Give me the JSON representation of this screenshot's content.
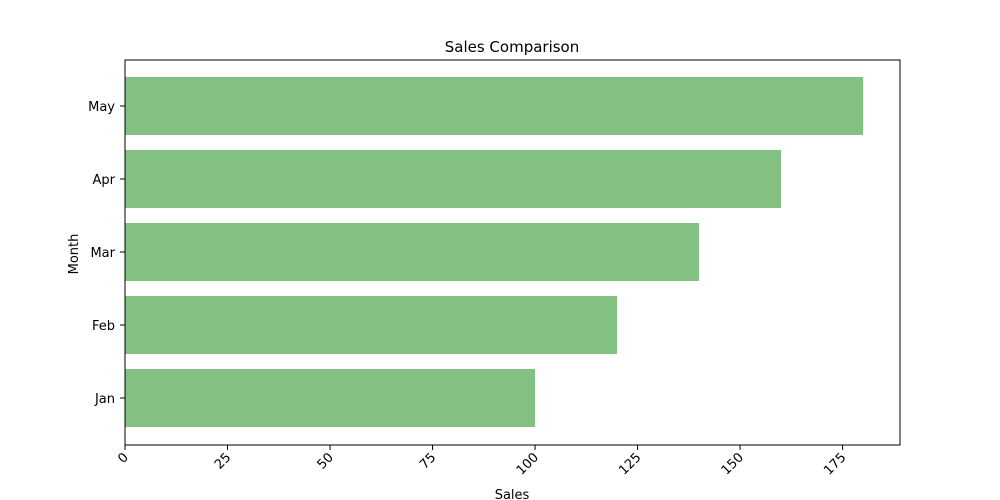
{
  "chart_data": {
    "type": "bar",
    "orientation": "horizontal",
    "title": "Sales Comparison",
    "xlabel": "Sales",
    "ylabel": "Month",
    "categories": [
      "Jan",
      "Feb",
      "Mar",
      "Apr",
      "May"
    ],
    "series": [
      {
        "values": [
          100,
          120,
          140,
          160,
          180
        ],
        "color": "#82c182"
      }
    ],
    "xlim": [
      0,
      189
    ],
    "x_ticks": [
      0,
      25,
      50,
      75,
      100,
      125,
      150,
      175
    ],
    "x_tick_rotation": -45,
    "grid": false,
    "legend": "none"
  }
}
